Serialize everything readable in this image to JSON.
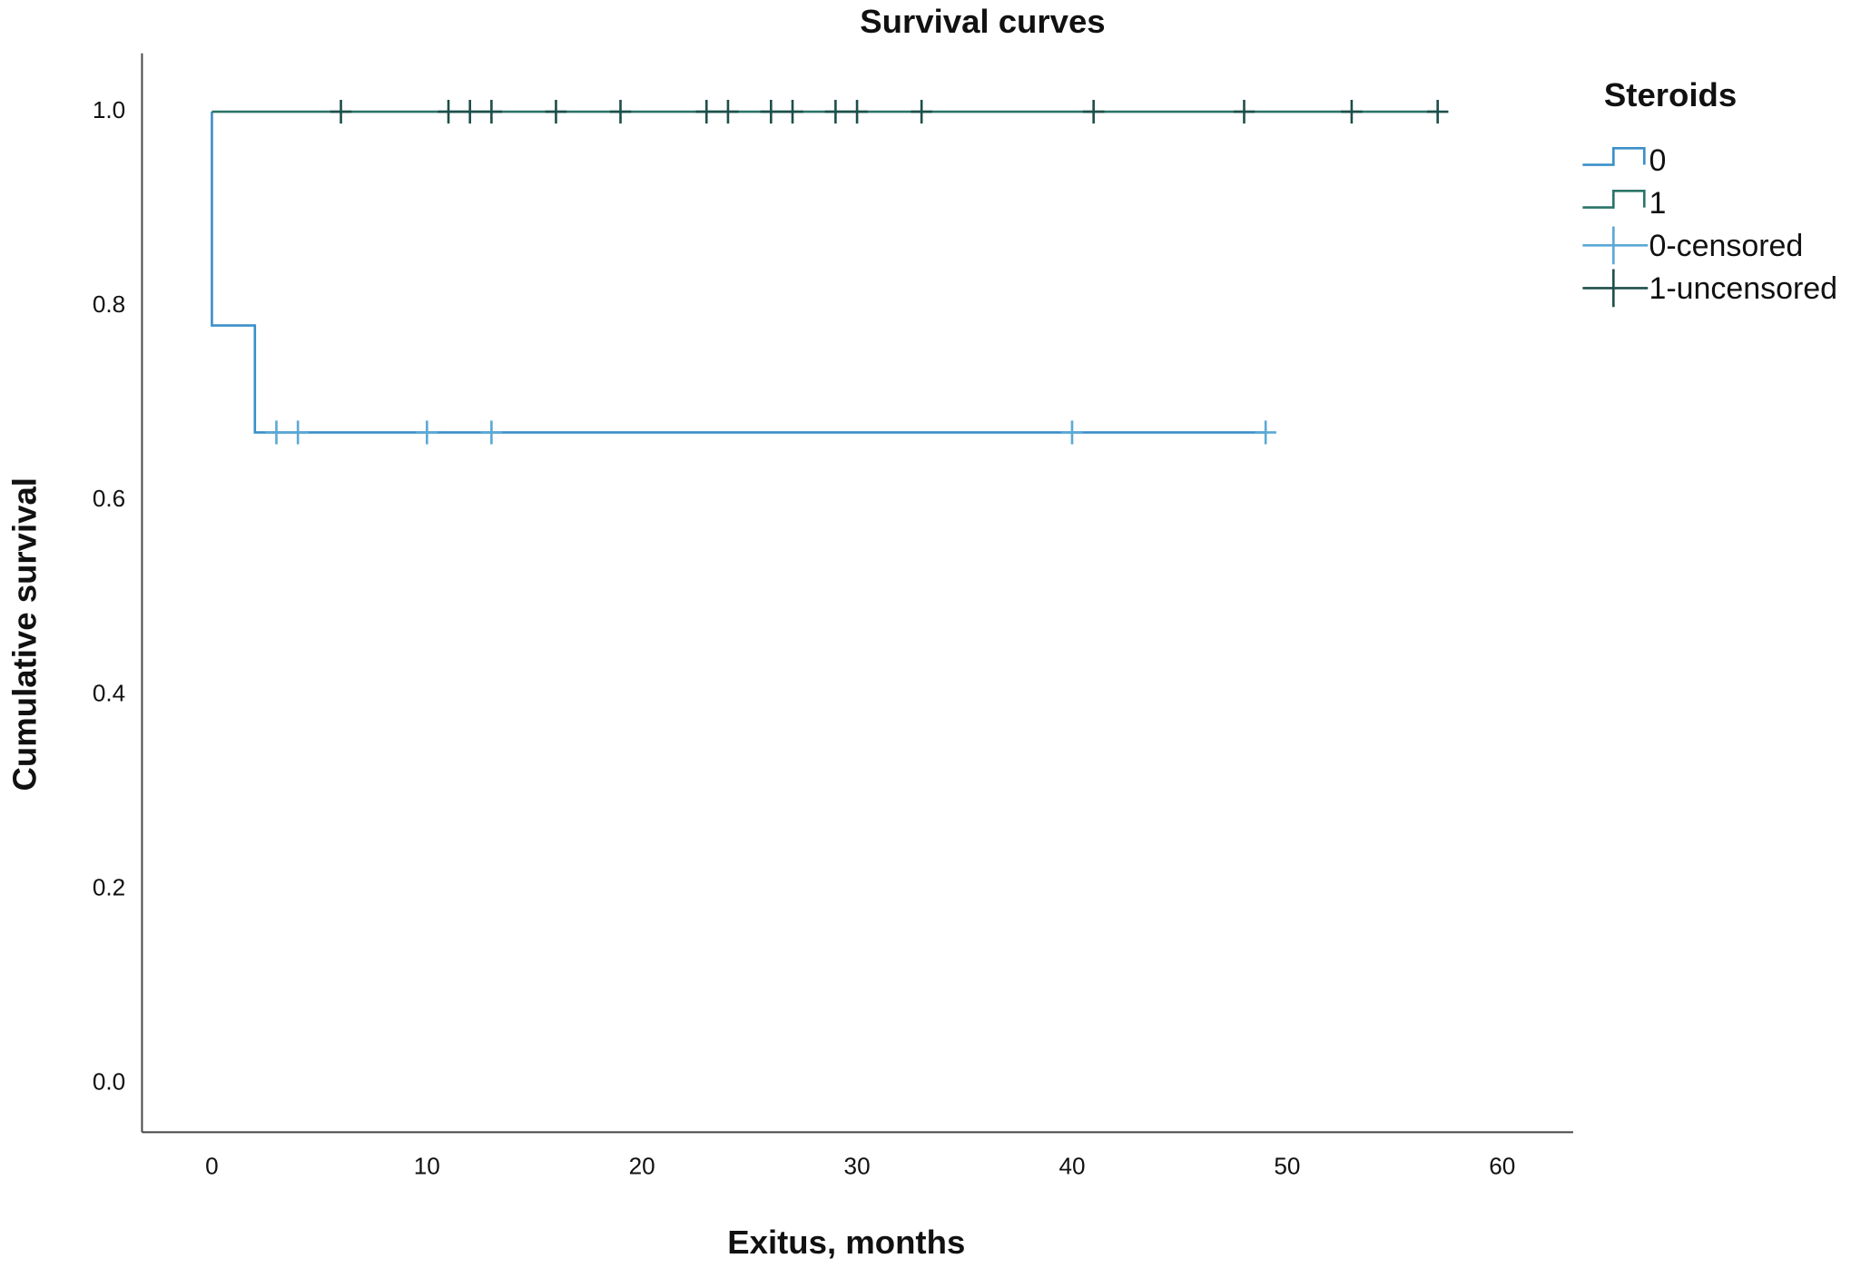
{
  "chart_data": {
    "type": "step",
    "title": "Survival curves",
    "x_label": "Exitus, months",
    "y_label": "Cumulative survival",
    "legend_title": "Steroids",
    "legend": "right",
    "xlim": [
      -3.25,
      63.3
    ],
    "ylim": [
      -0.05,
      1.06
    ],
    "xticks": [
      0,
      10,
      20,
      30,
      40,
      50,
      60
    ],
    "yticks": [
      {
        "value": 0,
        "label": "0.0"
      },
      0.2,
      0.4,
      0.6,
      0.8,
      {
        "value": 1,
        "label": "1.0"
      }
    ],
    "series": [
      {
        "name": "0",
        "color": "#3a8fc9",
        "x": [
          0,
          0,
          2,
          2,
          49
        ],
        "values": [
          1.0,
          0.78,
          0.78,
          0.67,
          0.67
        ]
      },
      {
        "name": "1",
        "color": "#2a7468",
        "x": [
          0,
          57
        ],
        "values": [
          1.0,
          1.0
        ]
      },
      {
        "name": "0-censored",
        "color": "#5aa9d6",
        "marker": "+",
        "x": [
          3,
          4,
          10,
          13,
          40,
          49
        ],
        "values": [
          0.67,
          0.67,
          0.67,
          0.67,
          0.67,
          0.67
        ]
      },
      {
        "name": "1-uncensored",
        "color": "#1d4f4a",
        "marker": "+",
        "x": [
          6,
          11,
          12,
          13,
          16,
          19,
          23,
          24,
          26,
          27,
          29,
          30,
          33,
          41,
          48,
          53,
          57
        ],
        "values": [
          1.0,
          1.0,
          1.0,
          1.0,
          1.0,
          1.0,
          1.0,
          1.0,
          1.0,
          1.0,
          1.0,
          1.0,
          1.0,
          1.0,
          1.0,
          1.0,
          1.0
        ]
      }
    ]
  }
}
